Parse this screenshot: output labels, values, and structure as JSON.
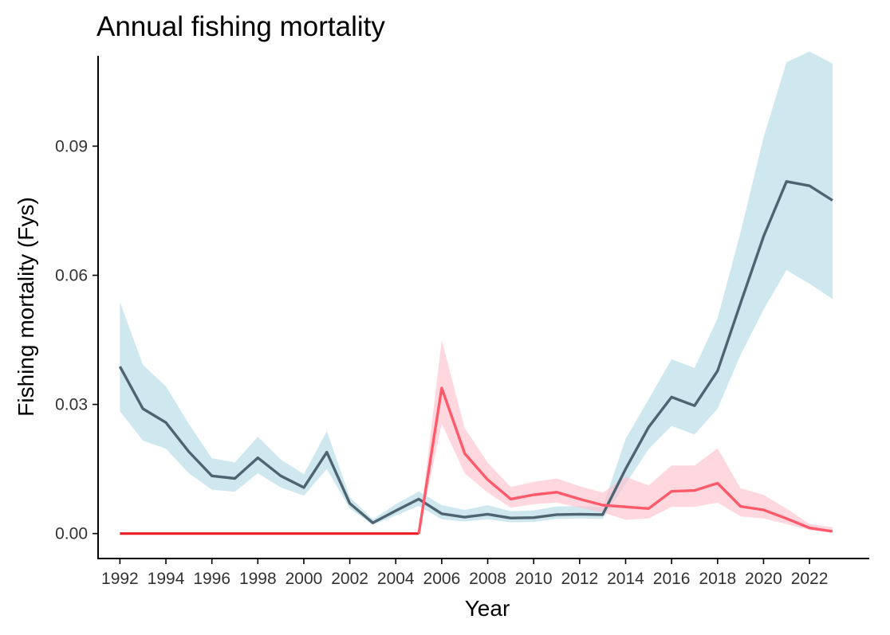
{
  "chart_data": {
    "type": "line",
    "title": "Annual fishing mortality",
    "xlabel": "Year",
    "ylabel": "Fishing mortality (Fys)",
    "x": [
      1992,
      1993,
      1994,
      1995,
      1996,
      1997,
      1998,
      1999,
      2000,
      2001,
      2002,
      2003,
      2004,
      2005,
      2006,
      2007,
      2008,
      2009,
      2010,
      2011,
      2012,
      2013,
      2014,
      2015,
      2016,
      2017,
      2018,
      2019,
      2020,
      2021,
      2022,
      2023
    ],
    "x_ticks": [
      1992,
      1994,
      1996,
      1998,
      2000,
      2002,
      2004,
      2006,
      2008,
      2010,
      2012,
      2014,
      2016,
      2018,
      2020,
      2022
    ],
    "x_tick_labels": [
      "1992",
      "1994",
      "1996",
      "1998",
      "2000",
      "2002",
      "2004",
      "2006",
      "2008",
      "2010",
      "2012",
      "2014",
      "2016",
      "2018",
      "2020",
      "2022"
    ],
    "xlim": [
      1991.05,
      2024.6
    ],
    "y_ticks": [
      0,
      0.03,
      0.06,
      0.09
    ],
    "y_tick_labels": [
      "0.00",
      "0.03",
      "0.06",
      "0.09"
    ],
    "ylim": [
      -0.0058,
      0.111
    ],
    "grid": false,
    "series": [
      {
        "name": "blue",
        "line_color": "#4e6470",
        "band_color": "#add8e6",
        "values": [
          0.0388,
          0.029,
          0.0258,
          0.019,
          0.0134,
          0.0128,
          0.0176,
          0.0134,
          0.0107,
          0.0189,
          0.007,
          0.0025,
          0.0053,
          0.008,
          0.0046,
          0.0038,
          0.0045,
          0.0036,
          0.0037,
          0.0044,
          0.0045,
          0.0044,
          0.015,
          0.0247,
          0.0317,
          0.0297,
          0.0378,
          0.0535,
          0.069,
          0.0818,
          0.0808,
          0.0774
        ],
        "lower": [
          0.0284,
          0.0216,
          0.0197,
          0.014,
          0.0102,
          0.0097,
          0.014,
          0.0107,
          0.0088,
          0.015,
          0.0058,
          0.002,
          0.0042,
          0.0064,
          0.0033,
          0.0028,
          0.0033,
          0.0026,
          0.0027,
          0.0034,
          0.0035,
          0.0034,
          0.0115,
          0.0196,
          0.025,
          0.023,
          0.029,
          0.0415,
          0.052,
          0.0612,
          0.058,
          0.0545
        ],
        "upper": [
          0.0538,
          0.0392,
          0.0342,
          0.0255,
          0.0175,
          0.0165,
          0.0225,
          0.0172,
          0.0138,
          0.0238,
          0.0085,
          0.0033,
          0.0068,
          0.0098,
          0.0066,
          0.0055,
          0.0066,
          0.0052,
          0.0054,
          0.0063,
          0.0064,
          0.0062,
          0.022,
          0.0312,
          0.0405,
          0.0385,
          0.05,
          0.07,
          0.092,
          0.1095,
          0.112,
          0.1092
        ]
      },
      {
        "name": "red",
        "line_color": "#ff5a6a",
        "band_color": "#ffc0cb",
        "values": [
          0,
          0,
          0,
          0,
          0,
          0,
          0,
          0,
          0,
          0,
          0,
          0,
          0,
          0,
          0.0338,
          0.0186,
          0.0125,
          0.008,
          0.009,
          0.0096,
          0.008,
          0.0066,
          0.0062,
          0.0058,
          0.0098,
          0.01,
          0.0117,
          0.0063,
          0.0055,
          0.0035,
          0.0013,
          0.0005
        ],
        "lower": [
          0,
          0,
          0,
          0,
          0,
          0,
          0,
          0,
          0,
          0,
          0,
          0,
          0,
          0,
          0.0255,
          0.014,
          0.0095,
          0.006,
          0.0068,
          0.0072,
          0.006,
          0.0049,
          0.0032,
          0.0035,
          0.0062,
          0.0062,
          0.0072,
          0.004,
          0.0035,
          0.0022,
          0.0008,
          0.0002
        ],
        "upper": [
          0,
          0,
          0,
          0,
          0,
          0,
          0,
          0,
          0,
          0,
          0,
          0,
          0,
          0,
          0.045,
          0.0245,
          0.0165,
          0.0108,
          0.012,
          0.0128,
          0.011,
          0.0095,
          0.0132,
          0.0112,
          0.0158,
          0.0158,
          0.0198,
          0.0105,
          0.009,
          0.0058,
          0.0022,
          0.0015
        ]
      }
    ],
    "early_segment": {
      "name": "red-early",
      "color": "#ee1c24",
      "x_start": 1992,
      "x_end": 2005,
      "value": 0
    }
  }
}
